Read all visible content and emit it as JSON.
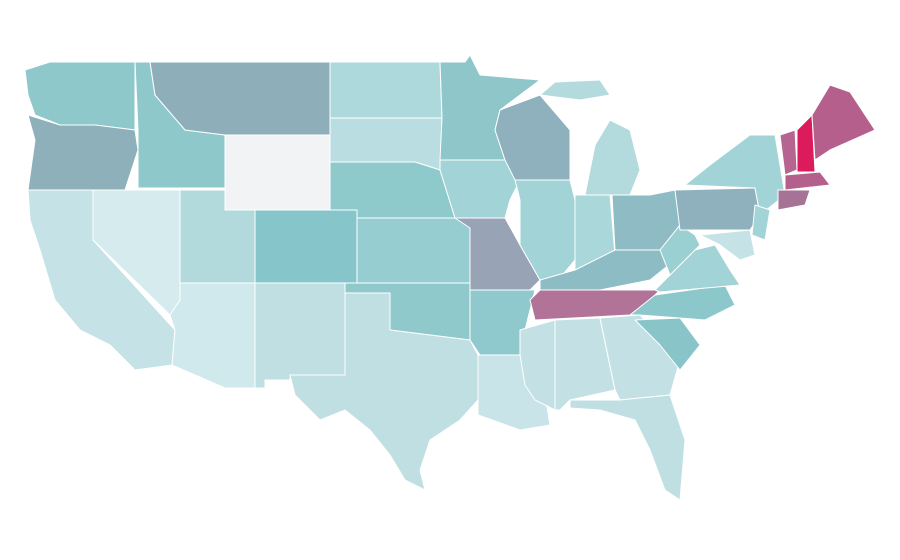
{
  "regions": [
    {
      "color": "#8ec8cb"
    },
    {
      "color": "#8db0bb"
    },
    {
      "color": "#c5e3e6"
    },
    {
      "color": "#d6ebee"
    },
    {
      "color": "#8ec8cb"
    },
    {
      "color": "#8eafba"
    },
    {
      "color": "#f2f3f4"
    },
    {
      "color": "#b2dadd"
    },
    {
      "color": "#d0e9ec"
    },
    {
      "color": "#86c6cb"
    },
    {
      "color": "#bfdfe3"
    },
    {
      "color": "#add8dc"
    },
    {
      "color": "#b9dde0"
    },
    {
      "color": "#8ec9cc"
    },
    {
      "color": "#96cdd0"
    },
    {
      "color": "#90c9cc"
    },
    {
      "color": "#bfdfe3"
    },
    {
      "color": "#8ec6ca"
    },
    {
      "color": "#a2d3d6"
    },
    {
      "color": "#98a3b5"
    },
    {
      "color": "#8fc9cd"
    },
    {
      "color": "#c8e4e8"
    },
    {
      "color": "#8eb1bd"
    },
    {
      "color": "#a2d3d6"
    },
    {
      "color": "#b3dbde"
    },
    {
      "color": "#a9d7da"
    },
    {
      "color": "#8fbcc4"
    },
    {
      "color": "#8dbcc4"
    },
    {
      "color": "#b27399"
    },
    {
      "color": "#c3e1e4"
    },
    {
      "color": "#c3e1e4"
    },
    {
      "color": "#c3e1e4"
    },
    {
      "color": "#c0dfe3"
    },
    {
      "color": "#89c4c9"
    },
    {
      "color": "#8cc7cb"
    },
    {
      "color": "#a2d3d6"
    },
    {
      "color": "#9bd0d3"
    },
    {
      "color": "#8eb1bd"
    },
    {
      "color": "#a2d3d6"
    },
    {
      "color": "#a2d3d6"
    },
    {
      "color": "#c5e3e6"
    },
    {
      "color": "#b56590"
    },
    {
      "color": "#dc1b5c"
    },
    {
      "color": "#b5608c"
    },
    {
      "color": "#b5608c"
    },
    {
      "color": "#a67396"
    }
  ]
}
